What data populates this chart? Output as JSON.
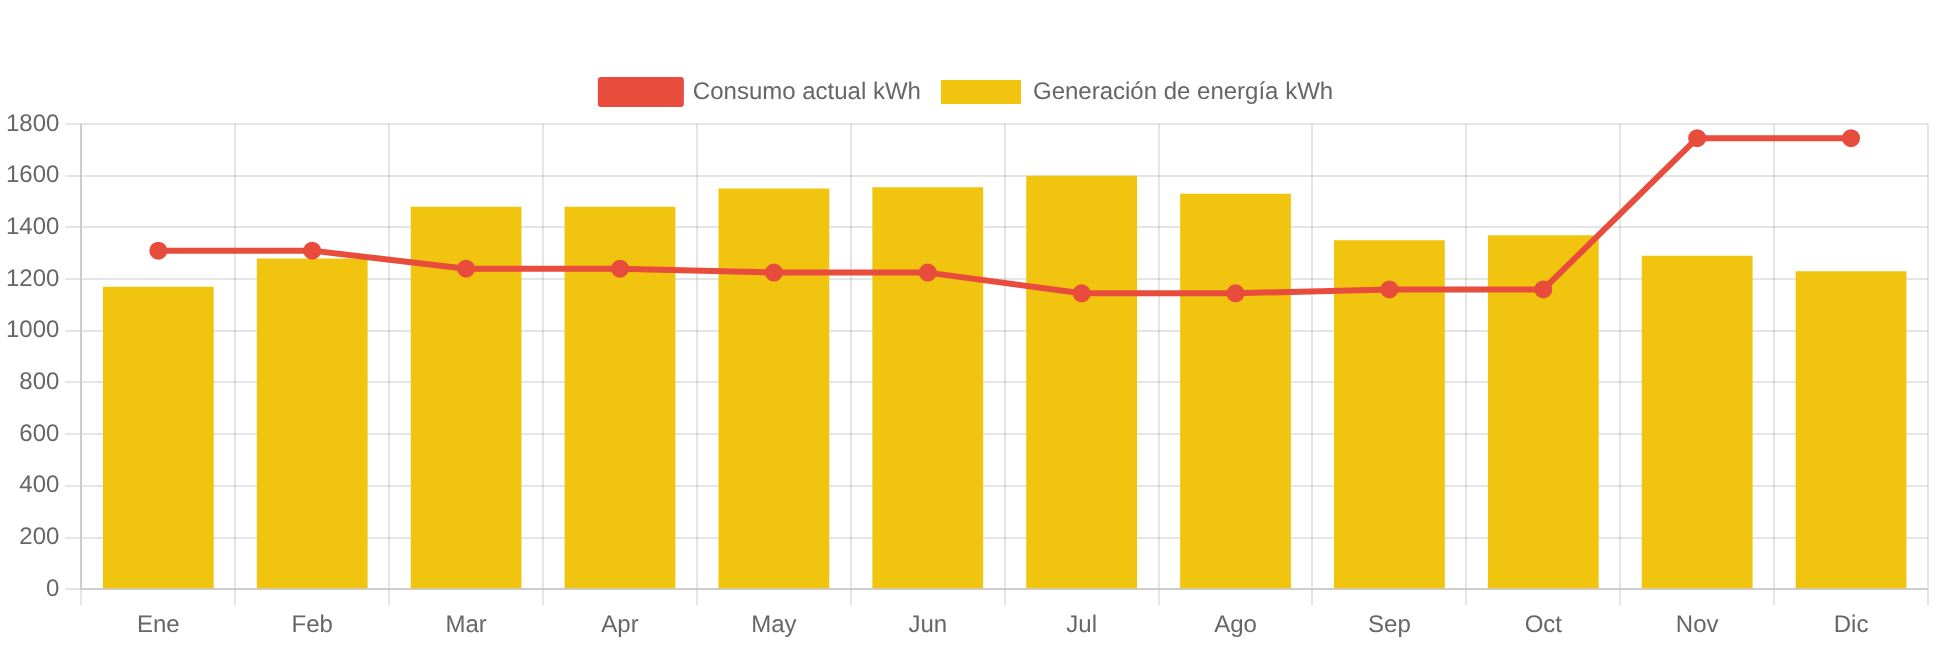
{
  "chart_data": {
    "type": "bar",
    "categories": [
      "Ene",
      "Feb",
      "Mar",
      "Apr",
      "May",
      "Jun",
      "Jul",
      "Ago",
      "Sep",
      "Oct",
      "Nov",
      "Dic"
    ],
    "series": [
      {
        "name": "Consumo actual kWh",
        "type": "line",
        "color": "#e74c3c",
        "values": [
          1310,
          1310,
          1240,
          1240,
          1225,
          1225,
          1145,
          1145,
          1160,
          1160,
          1745,
          1745
        ]
      },
      {
        "name": "Generación de energía kWh",
        "color": "#f1c40f",
        "values": [
          1170,
          1280,
          1480,
          1480,
          1550,
          1555,
          1600,
          1530,
          1350,
          1370,
          1290,
          1230
        ]
      }
    ],
    "ylim": [
      0,
      1800
    ],
    "yticks": [
      0,
      200,
      400,
      600,
      800,
      1000,
      1200,
      1400,
      1600,
      1800
    ],
    "grid": true,
    "legend": "top",
    "marker": "circle"
  }
}
